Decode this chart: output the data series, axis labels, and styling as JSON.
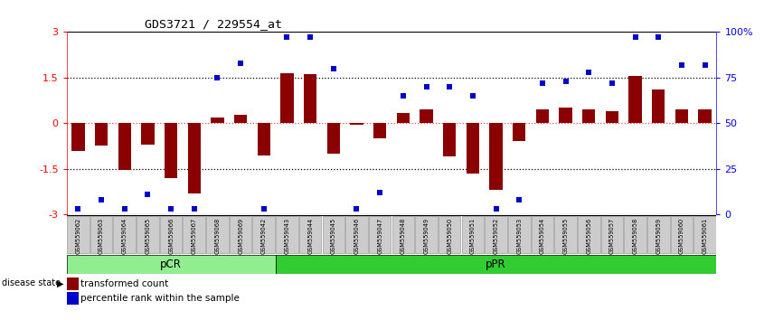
{
  "title": "GDS3721 / 229554_at",
  "samples": [
    "GSM559062",
    "GSM559063",
    "GSM559064",
    "GSM559065",
    "GSM559066",
    "GSM559067",
    "GSM559068",
    "GSM559069",
    "GSM559042",
    "GSM559043",
    "GSM559044",
    "GSM559045",
    "GSM559046",
    "GSM559047",
    "GSM559048",
    "GSM559049",
    "GSM559050",
    "GSM559051",
    "GSM559052",
    "GSM559053",
    "GSM559054",
    "GSM559055",
    "GSM559056",
    "GSM559057",
    "GSM559058",
    "GSM559059",
    "GSM559060",
    "GSM559061"
  ],
  "bar_values": [
    -0.9,
    -0.75,
    -1.55,
    -0.7,
    -1.8,
    -2.3,
    0.18,
    0.28,
    -1.05,
    1.65,
    1.6,
    -1.0,
    -0.05,
    -0.5,
    0.35,
    0.45,
    -1.1,
    -1.65,
    -2.2,
    -0.6,
    0.45,
    0.5,
    0.45,
    0.4,
    1.55,
    1.1,
    0.45,
    0.45
  ],
  "percentile_values": [
    3,
    8,
    3,
    11,
    3,
    3,
    75,
    83,
    3,
    97,
    97,
    80,
    3,
    12,
    65,
    70,
    70,
    65,
    3,
    8,
    72,
    73,
    78,
    72,
    97,
    97,
    82,
    82
  ],
  "pcr_count": 9,
  "ppr_count": 19,
  "ylim": [
    -3,
    3
  ],
  "yticks_left": [
    -3,
    -1.5,
    0,
    1.5,
    3
  ],
  "yticks_right": [
    0,
    25,
    50,
    75,
    100
  ],
  "bar_color": "#8B0000",
  "dot_color": "#0000CD",
  "pcr_color": "#90EE90",
  "ppr_color": "#32CD32",
  "zero_line_color": "#FF4444",
  "label_transformed": "transformed count",
  "label_percentile": "percentile rank within the sample",
  "disease_state_label": "disease state",
  "pcr_label": "pCR",
  "ppr_label": "pPR"
}
